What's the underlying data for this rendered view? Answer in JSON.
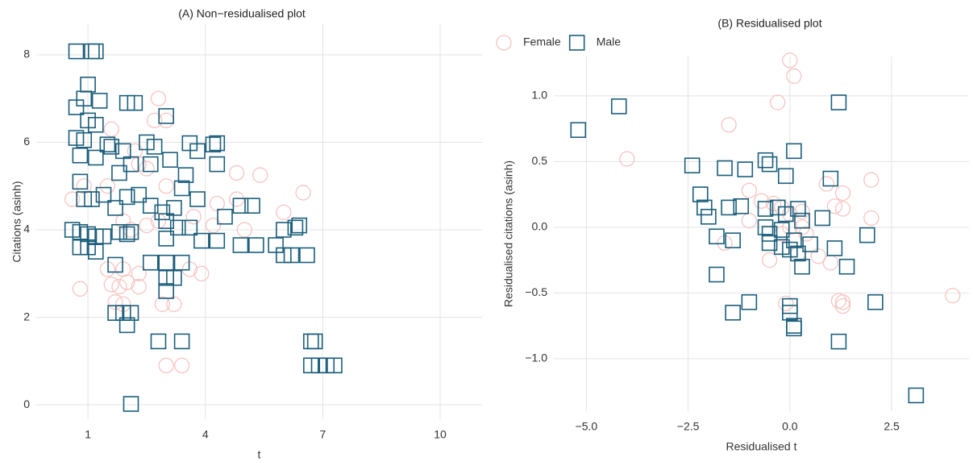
{
  "chart_data": [
    {
      "type": "scatter",
      "title": "(A) Non−residualised plot",
      "x_label": "t",
      "y_label": "Citations (asinh)",
      "xlim": [
        -0.32,
        11.07
      ],
      "ylim": [
        -0.33,
        8.7
      ],
      "xticks": [
        1,
        4,
        7,
        10
      ],
      "yticks": [
        0,
        2,
        4,
        6,
        8
      ],
      "grid": true,
      "legend": false,
      "series": [
        {
          "name": "Female",
          "color": "#f5c4c2",
          "marker": "circle",
          "x": [
            2.8,
            2.7,
            3.0,
            1.6,
            2.2,
            2.5,
            3.0,
            1.5,
            0.9,
            1.9,
            2.1,
            2.5,
            2.8,
            4.2,
            4.3,
            4.8,
            4.8,
            5.4,
            6.0,
            6.5,
            5.0,
            1.5,
            1.9,
            2.3,
            1.6,
            1.8,
            2.0,
            2.3,
            0.8,
            1.7,
            1.9,
            2.9,
            3.2,
            3.0,
            3.4,
            3.6,
            3.9,
            3.7,
            2.3,
            0.6
          ],
          "values": [
            7.0,
            6.5,
            6.5,
            6.3,
            5.8,
            5.4,
            5.0,
            5.0,
            5.0,
            4.2,
            4.0,
            4.1,
            4.2,
            4.1,
            4.6,
            4.7,
            5.3,
            5.25,
            4.4,
            4.85,
            4.0,
            3.1,
            3.1,
            3.0,
            2.75,
            2.7,
            2.8,
            2.7,
            2.65,
            2.35,
            2.3,
            2.3,
            2.3,
            0.9,
            0.9,
            3.1,
            3.0,
            4.3,
            5.5,
            4.7
          ]
        },
        {
          "name": "Male",
          "color": "#1b5e7b",
          "marker": "square",
          "x": [
            0.7,
            1.1,
            1.2,
            1.0,
            0.9,
            1.3,
            0.7,
            1.0,
            1.2,
            0.7,
            0.9,
            1.5,
            0.8,
            1.2,
            1.6,
            2.0,
            2.2,
            1.9,
            2.1,
            1.8,
            2.5,
            2.7,
            2.6,
            3.0,
            3.1,
            3.6,
            3.8,
            4.2,
            4.3,
            4.3,
            3.5,
            3.4,
            3.8,
            3.2,
            0.8,
            0.9,
            1.1,
            1.4,
            1.7,
            2.0,
            2.3,
            2.6,
            2.9,
            3.0,
            0.6,
            0.8,
            1.0,
            1.2,
            1.4,
            0.8,
            1.0,
            1.2,
            1.8,
            2.0,
            2.1,
            3.0,
            3.3,
            3.6,
            3.9,
            4.3,
            4.5,
            4.9,
            5.2,
            4.9,
            5.3,
            5.8,
            6.0,
            6.3,
            6.4,
            6.0,
            6.2,
            6.6,
            2.6,
            3.0,
            3.4,
            3.0,
            3.2,
            3.0,
            1.7,
            1.7,
            1.9,
            2.1,
            2.0,
            2.8,
            3.4,
            2.1,
            6.7,
            6.8,
            6.7,
            6.9,
            7.1,
            7.3
          ],
          "values": [
            8.08,
            8.08,
            8.08,
            7.32,
            7.0,
            6.95,
            6.8,
            6.5,
            6.4,
            6.1,
            6.05,
            5.95,
            5.7,
            5.65,
            5.9,
            6.9,
            6.9,
            5.8,
            5.5,
            5.3,
            6.0,
            5.9,
            5.5,
            6.6,
            5.6,
            5.98,
            5.8,
            5.95,
            5.98,
            5.5,
            5.25,
            4.95,
            4.7,
            4.5,
            5.1,
            4.7,
            4.7,
            4.8,
            4.5,
            4.75,
            4.8,
            4.55,
            4.4,
            4.2,
            4.0,
            3.95,
            3.9,
            3.85,
            3.85,
            3.6,
            3.6,
            3.5,
            3.95,
            3.9,
            3.95,
            3.8,
            4.05,
            4.05,
            3.75,
            3.75,
            4.3,
            4.55,
            4.55,
            3.65,
            3.65,
            3.65,
            4.0,
            4.05,
            4.1,
            3.42,
            3.42,
            3.42,
            3.25,
            3.25,
            3.25,
            2.9,
            2.9,
            2.6,
            3.2,
            2.1,
            2.1,
            2.1,
            1.82,
            1.45,
            1.45,
            0.02,
            1.45,
            1.45,
            0.9,
            0.9,
            0.9,
            0.9
          ]
        }
      ]
    },
    {
      "type": "scatter",
      "title": "(B) Residualised plot",
      "x_label": "Residualised t",
      "y_label": "Residualised citations (asinh)",
      "xlim": [
        -5.8,
        4.4
      ],
      "ylim": [
        -1.4,
        1.3
      ],
      "xticks": [
        {
          "value": -5,
          "label": "−5.0"
        },
        {
          "value": -2.5,
          "label": "−2.5"
        },
        {
          "value": 0,
          "label": "0.0"
        },
        {
          "value": 2.5,
          "label": "2.5"
        }
      ],
      "yticks": [
        {
          "value": -1,
          "label": "−1.0"
        },
        {
          "value": -0.5,
          "label": "−0.5"
        },
        {
          "value": 0,
          "label": "0.0"
        },
        {
          "value": 0.5,
          "label": "0.5"
        },
        {
          "value": 1,
          "label": "1.0"
        }
      ],
      "grid": true,
      "legend": "top",
      "series": [
        {
          "name": "Female",
          "color": "#f5c4c2",
          "marker": "circle",
          "x": [
            0.0,
            0.1,
            -0.3,
            -1.5,
            -4.0,
            -1.0,
            -0.7,
            -0.4,
            -0.2,
            0.0,
            0.3,
            0.9,
            1.3,
            2.0,
            1.1,
            1.3,
            2.0,
            -1.0,
            0.0,
            -0.2,
            0.4,
            -1.6,
            0.2,
            0.7,
            1.0,
            -0.5,
            1.2,
            1.3,
            1.3,
            -0.1,
            4.0,
            0.3
          ],
          "values": [
            1.27,
            1.15,
            0.95,
            0.78,
            0.52,
            0.28,
            0.2,
            0.18,
            0.15,
            0.1,
            0.12,
            0.33,
            0.26,
            0.36,
            0.16,
            0.14,
            0.07,
            0.05,
            0.0,
            -0.05,
            -0.05,
            -0.12,
            -0.2,
            -0.22,
            -0.27,
            -0.25,
            -0.56,
            -0.57,
            -0.6,
            -0.58,
            -0.52,
            0.0
          ]
        },
        {
          "name": "Male",
          "color": "#1b5e7b",
          "marker": "square",
          "x": [
            -5.2,
            -4.2,
            1.2,
            -2.4,
            -1.6,
            -1.1,
            -0.6,
            -0.5,
            -0.1,
            0.1,
            1.0,
            -2.2,
            -2.1,
            -2.0,
            -1.5,
            -1.2,
            -0.6,
            -0.3,
            -0.1,
            0.2,
            0.3,
            0.8,
            -0.6,
            -0.5,
            -0.2,
            0.1,
            0.5,
            -1.8,
            -1.4,
            -0.5,
            -0.2,
            0.0,
            0.2,
            1.1,
            1.9,
            0.3,
            1.4,
            -1.8,
            -1.0,
            -1.4,
            0.0,
            0.0,
            0.1,
            0.1,
            1.2,
            2.1,
            3.1
          ],
          "values": [
            0.74,
            0.92,
            0.95,
            0.47,
            0.45,
            0.44,
            0.51,
            0.48,
            0.39,
            0.58,
            0.37,
            0.25,
            0.15,
            0.08,
            0.15,
            0.16,
            0.14,
            0.15,
            0.1,
            0.14,
            0.05,
            0.07,
            0.0,
            -0.05,
            -0.02,
            -0.1,
            -0.13,
            -0.07,
            -0.1,
            -0.12,
            -0.15,
            -0.17,
            -0.2,
            -0.16,
            -0.06,
            -0.3,
            -0.3,
            -0.36,
            -0.57,
            -0.65,
            -0.6,
            -0.65,
            -0.75,
            -0.77,
            -0.87,
            -0.57,
            -1.28
          ]
        }
      ]
    }
  ]
}
